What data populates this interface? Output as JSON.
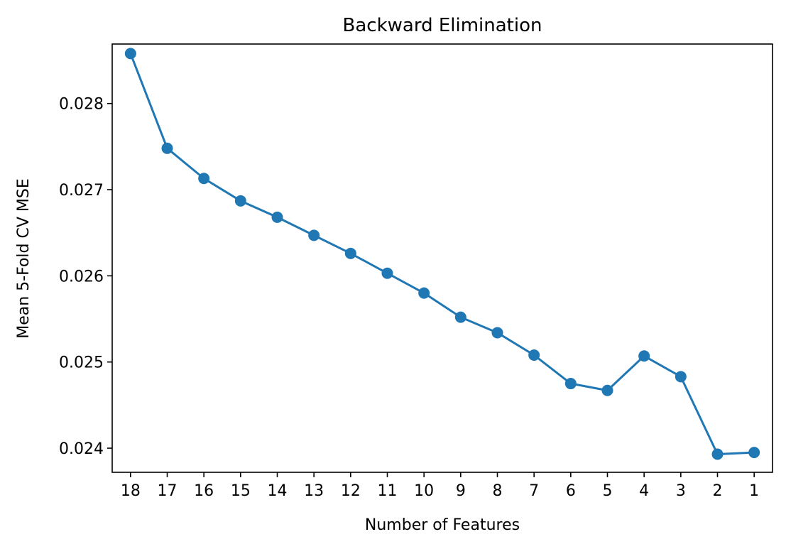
{
  "chart_data": {
    "type": "line",
    "title": "Backward Elimination",
    "xlabel": "Number of Features",
    "ylabel": "Mean 5-Fold CV MSE",
    "x": [
      18,
      17,
      16,
      15,
      14,
      13,
      12,
      11,
      10,
      9,
      8,
      7,
      6,
      5,
      4,
      3,
      2,
      1
    ],
    "x_tick_labels": [
      "18",
      "17",
      "16",
      "15",
      "14",
      "13",
      "12",
      "11",
      "10",
      "9",
      "8",
      "7",
      "6",
      "5",
      "4",
      "3",
      "2",
      "1"
    ],
    "series": [
      {
        "values": [
          0.02858,
          0.02748,
          0.02713,
          0.02687,
          0.02668,
          0.02647,
          0.02626,
          0.02603,
          0.0258,
          0.02552,
          0.02534,
          0.02508,
          0.02475,
          0.02467,
          0.02507,
          0.02483,
          0.02393,
          0.02395
        ],
        "color": "#1f77b4",
        "marker": "circle"
      }
    ],
    "y_ticks": [
      0.024,
      0.025,
      0.026,
      0.027,
      0.028
    ],
    "y_tick_labels": [
      "0.024",
      "0.025",
      "0.026",
      "0.027",
      "0.028"
    ],
    "ylim": [
      0.02372,
      0.02869
    ],
    "grid": false,
    "legend": "none"
  }
}
